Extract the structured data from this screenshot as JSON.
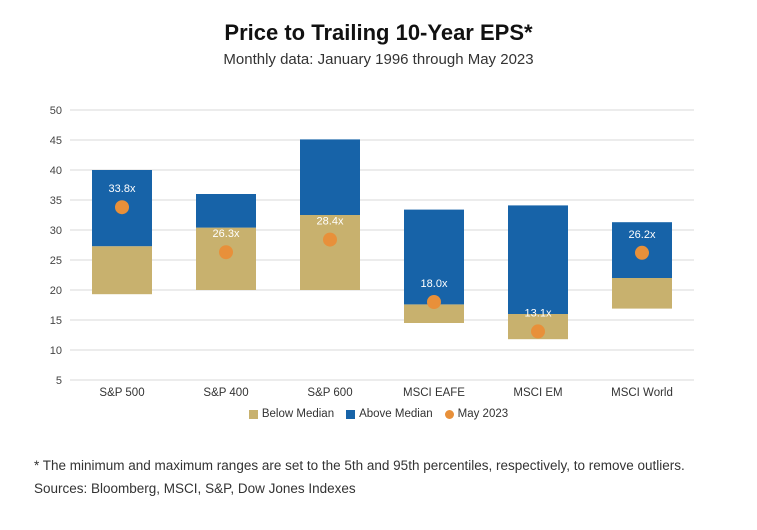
{
  "title": "Price to Trailing 10-Year EPS*",
  "subtitle": "Monthly data: January 1996 through May 2023",
  "footnote": "* The minimum and maximum ranges are set to the 5th and 95th percentiles, respectively, to remove outliers.",
  "sources": "Sources: Bloomberg, MSCI, S&P, Dow Jones Indexes",
  "colors": {
    "below_median": "#C8B16E",
    "above_median": "#1763A8",
    "may_2023": "#E8903A",
    "grid": "#D9D9D9"
  },
  "legend": {
    "below_median": "Below Median",
    "above_median": "Above Median",
    "may_2023": "May 2023"
  },
  "chart_data": {
    "type": "bar",
    "title": "Price to Trailing 10-Year EPS*",
    "subtitle": "Monthly data: January 1996 through May 2023",
    "ylim": [
      5,
      50
    ],
    "yticks": [
      5,
      10,
      15,
      20,
      25,
      30,
      35,
      40,
      45,
      50
    ],
    "grid": true,
    "legend_position": "bottom",
    "categories": [
      "S&P 500",
      "S&P 400",
      "S&P 600",
      "MSCI EAFE",
      "MSCI EM",
      "MSCI World"
    ],
    "low": [
      19.3,
      20.0,
      20.0,
      14.5,
      11.8,
      16.9
    ],
    "median": [
      27.3,
      30.4,
      32.5,
      17.6,
      16.0,
      22.0
    ],
    "high": [
      40.0,
      36.0,
      45.1,
      33.4,
      34.1,
      31.3
    ],
    "may_2023": [
      33.8,
      26.3,
      28.4,
      18.0,
      13.1,
      26.2
    ],
    "may_2023_labels": [
      "33.8x",
      "26.3x",
      "28.4x",
      "18.0x",
      "13.1x",
      "26.2x"
    ]
  }
}
